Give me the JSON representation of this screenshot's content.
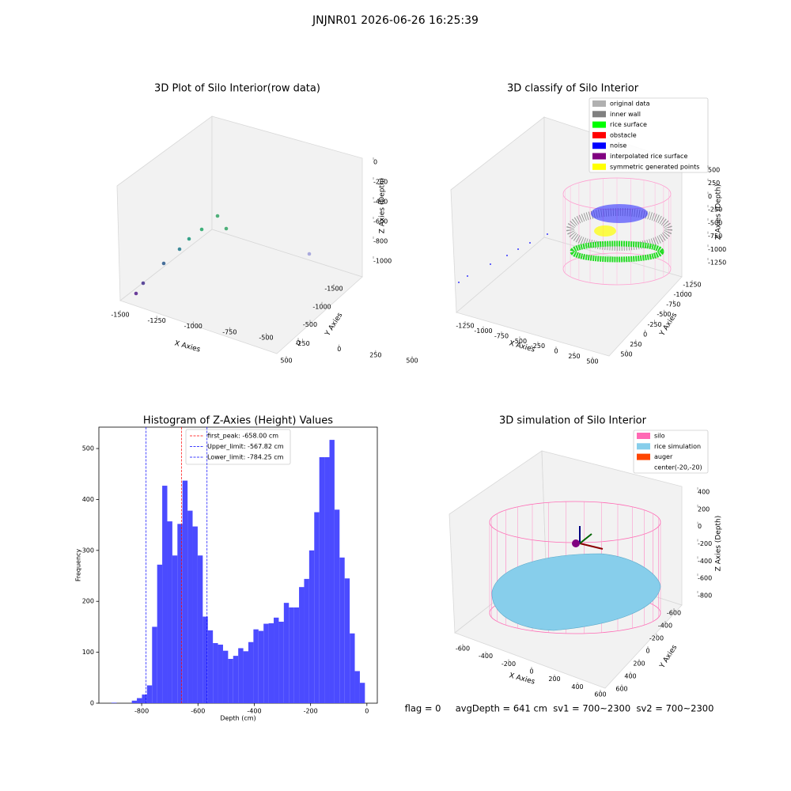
{
  "title": "JNJNR01 2026-06-26 16:25:39",
  "chart_data": [
    {
      "type": "scatter3d",
      "title": "3D Plot of Silo Interior(row data)",
      "xlabel": "X Axies",
      "ylabel": "Y Axies",
      "zlabel": "Z Axies (Depth)",
      "xticks": [
        -1500,
        -1250,
        -1000,
        -750,
        -500,
        -250,
        0,
        250,
        500
      ],
      "yticks": [
        -1500,
        -1000,
        -500,
        0,
        500
      ],
      "zticks": [
        0,
        -200,
        -400,
        -600,
        -800,
        -1000
      ]
    },
    {
      "type": "scatter3d",
      "title": "3D classify of Silo Interior",
      "xlabel": "X Axies",
      "ylabel": "Y Axies",
      "zlabel": "Z Axies (Depth)",
      "xticks": [
        -1250,
        -1000,
        -750,
        -500,
        -250,
        0,
        250,
        500
      ],
      "yticks": [
        -1250,
        -1000,
        -750,
        -500,
        -250,
        0,
        250,
        500
      ],
      "zticks": [
        500,
        250,
        0,
        -250,
        -500,
        -750,
        -1000,
        -1250
      ],
      "legend": [
        {
          "name": "original data",
          "color": "#b0b0b0"
        },
        {
          "name": "inner wall",
          "color": "#808080"
        },
        {
          "name": "rice surface",
          "color": "#00ff00"
        },
        {
          "name": "obstacle",
          "color": "#ff0000"
        },
        {
          "name": "noise",
          "color": "#0000ff"
        },
        {
          "name": "interpolated rice surface",
          "color": "#800080"
        },
        {
          "name": "symmetric generated points",
          "color": "#ffff00"
        }
      ]
    },
    {
      "type": "histogram",
      "title": "Histogram of Z-Axies (Height) Values",
      "xlabel": "Depth (cm)",
      "ylabel": "Frequency",
      "color": "#4b4bff",
      "bins": [
        -907,
        -889,
        -871,
        -853,
        -835,
        -817,
        -799,
        -781,
        -763,
        -745,
        -727,
        -709,
        -691,
        -673,
        -655,
        -637,
        -619,
        -601,
        -583,
        -565,
        -547,
        -529,
        -511,
        -493,
        -475,
        -457,
        -439,
        -421,
        -403,
        -385,
        -367,
        -349,
        -331,
        -313,
        -295,
        -277,
        -259,
        -241,
        -223,
        -205,
        -187,
        -169,
        -151,
        -133,
        -115,
        -97,
        -79,
        -61,
        -43,
        -25,
        -7
      ],
      "values": [
        1,
        0,
        0,
        0,
        5,
        10,
        17,
        35,
        150,
        272,
        427,
        357,
        290,
        352,
        437,
        378,
        347,
        290,
        170,
        143,
        118,
        115,
        103,
        87,
        93,
        108,
        102,
        120,
        145,
        142,
        156,
        157,
        168,
        160,
        197,
        188,
        188,
        228,
        244,
        300,
        375,
        483,
        483,
        517,
        380,
        286,
        245,
        137,
        63,
        40
      ],
      "xlim": [
        -952,
        37
      ],
      "ylim": [
        0,
        542
      ],
      "xticks": [
        -800,
        -600,
        -400,
        -200,
        0
      ],
      "yticks": [
        0,
        100,
        200,
        300,
        400,
        500
      ],
      "vlines": [
        {
          "name": "first_peak: -658.00 cm",
          "value": -658,
          "color": "#ff0000"
        },
        {
          "name": "Upper_limit: -567.82 cm",
          "value": -567.82,
          "color": "#0000ff"
        },
        {
          "name": "Lower_limit: -784.25 cm",
          "value": -784.25,
          "color": "#0000ff"
        }
      ]
    },
    {
      "type": "surface3d",
      "title": "3D simulation of Silo Interior",
      "xlabel": "X Axies",
      "ylabel": "Y Axies",
      "zlabel": "Z Axies (Depth)",
      "xticks": [
        -600,
        -400,
        -200,
        0,
        200,
        400,
        600
      ],
      "yticks": [
        -600,
        -400,
        -200,
        0,
        200,
        400,
        600
      ],
      "zticks": [
        400,
        200,
        0,
        -200,
        -400,
        -600,
        -800
      ],
      "legend": [
        {
          "name": "silo",
          "color": "#ff69b4"
        },
        {
          "name": "rice simulation",
          "color": "#87ceeb"
        },
        {
          "name": "auger",
          "color": "#ff4500"
        },
        {
          "name": "center(-20,-20)",
          "color": null
        }
      ]
    }
  ],
  "footer": "flag = 0     avgDepth = 641 cm  sv1 = 700~2300  sv2 = 700~2300"
}
